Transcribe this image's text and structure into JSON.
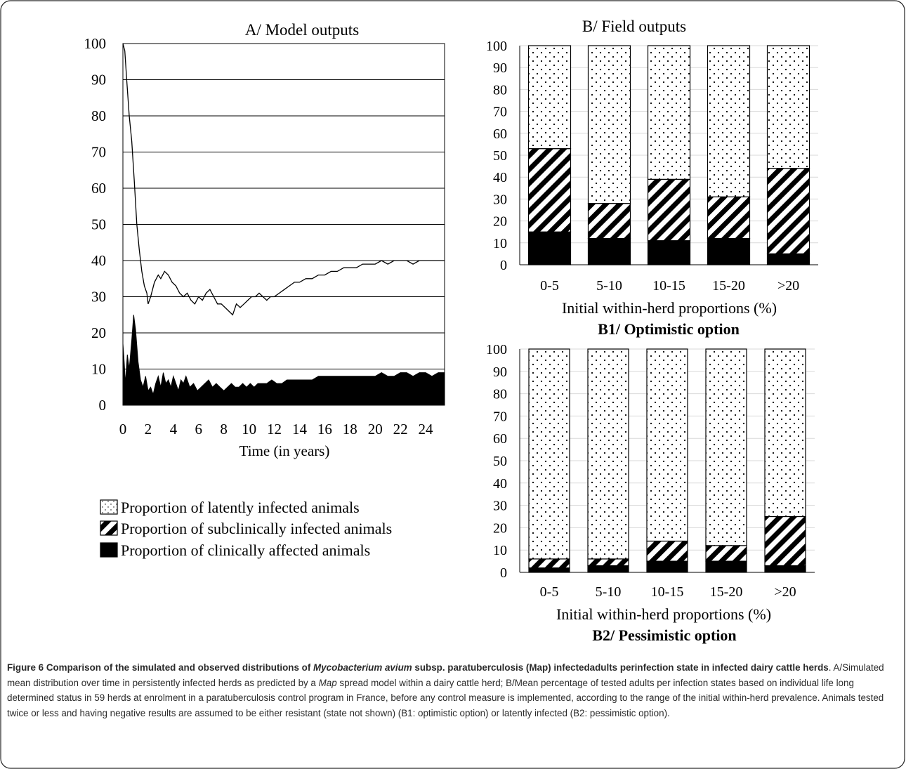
{
  "figure": {
    "caption_label": "Figure 6",
    "caption_title_1": "Comparison of the simulated and observed distributions of",
    "caption_title_italic": "Mycobacterium avium",
    "caption_title_2": "subsp. paratuberculosis (Map) infectedadults perinfection state in infected dairy cattle herds",
    "caption_body_1": ". A/Simulated mean distribution over time in persistently infected herds as predicted by a",
    "caption_body_italic": "Map",
    "caption_body_2": "spread model within a dairy cattle herd; B/Mean percentage of tested adults per infection states based on individual life long determined status in 59 herds at enrolment in a paratuberculosis control program in France, before any control measure is implemented, according to the range of the initial within-herd prevalence. Animals tested twice or less and having negative results are assumed to be either resistant (state not shown) (B1: optimistic option) or latently infected (B2: pessimistic option)."
  },
  "legend": {
    "latent": "Proportion of latently infected animals",
    "subclinical": "Proportion of subclinically infected animals",
    "clinical": "Proportion of clinically affected animals"
  },
  "chart_data": [
    {
      "id": "A",
      "type": "area",
      "title": "A/ Model outputs",
      "xlabel": "Time (in years)",
      "ylabel": "",
      "xlim": [
        0,
        25.5
      ],
      "ylim": [
        0,
        100
      ],
      "xticks": [
        0,
        2,
        4,
        6,
        8,
        10,
        12,
        14,
        16,
        18,
        20,
        22,
        24
      ],
      "yticks": [
        0,
        10,
        20,
        30,
        40,
        50,
        60,
        70,
        80,
        90,
        100
      ],
      "grid": true,
      "series": [
        {
          "name": "Proportion of subclinically infected animals",
          "style": "line",
          "x": [
            0,
            0.15,
            0.3,
            0.5,
            0.7,
            0.9,
            1.1,
            1.3,
            1.5,
            1.7,
            1.9,
            2.0,
            2.2,
            2.5,
            2.8,
            3.0,
            3.3,
            3.6,
            3.9,
            4.2,
            4.5,
            4.8,
            5.1,
            5.4,
            5.7,
            6.0,
            6.3,
            6.6,
            6.9,
            7.2,
            7.5,
            7.8,
            8.1,
            8.4,
            8.7,
            9.0,
            9.3,
            9.6,
            9.9,
            10.2,
            10.5,
            10.8,
            11.1,
            11.4,
            11.7,
            12.0,
            12.4,
            12.8,
            13.2,
            13.6,
            14.0,
            14.5,
            15.0,
            15.5,
            16.0,
            16.5,
            17.0,
            17.5,
            18.0,
            18.5,
            19.0,
            19.5,
            20.0,
            20.5,
            21.0,
            21.5,
            22.0,
            22.5,
            23.0,
            23.5,
            24.0,
            24.5,
            25.0,
            25.5
          ],
          "values": [
            100,
            98,
            90,
            80,
            73,
            62,
            50,
            43,
            37,
            33,
            31,
            28,
            30,
            34,
            36,
            35,
            37,
            36,
            34,
            33,
            31,
            30,
            31,
            29,
            28,
            30,
            29,
            31,
            32,
            30,
            28,
            28,
            27,
            26,
            25,
            28,
            27,
            28,
            29,
            30,
            30,
            31,
            30,
            29,
            30,
            30,
            31,
            32,
            33,
            34,
            34,
            35,
            35,
            36,
            36,
            37,
            37,
            38,
            38,
            38,
            39,
            39,
            39,
            40,
            39,
            40,
            40,
            40,
            39,
            40,
            40,
            40,
            40,
            40
          ]
        },
        {
          "name": "Proportion of clinically affected animals",
          "style": "area",
          "x": [
            0,
            0.1,
            0.2,
            0.35,
            0.5,
            0.7,
            0.85,
            1.0,
            1.2,
            1.4,
            1.6,
            1.8,
            2.0,
            2.2,
            2.4,
            2.6,
            2.8,
            3.0,
            3.2,
            3.4,
            3.6,
            3.8,
            4.0,
            4.2,
            4.4,
            4.6,
            4.8,
            5.0,
            5.3,
            5.6,
            5.9,
            6.2,
            6.5,
            6.8,
            7.1,
            7.4,
            7.7,
            8.0,
            8.3,
            8.6,
            8.9,
            9.2,
            9.5,
            9.8,
            10.1,
            10.4,
            10.7,
            11.0,
            11.4,
            11.8,
            12.2,
            12.6,
            13.0,
            13.5,
            14.0,
            14.5,
            15.0,
            15.5,
            16.0,
            16.5,
            17.0,
            17.5,
            18.0,
            18.5,
            19.0,
            19.5,
            20.0,
            20.5,
            21.0,
            21.5,
            22.0,
            22.5,
            23.0,
            23.5,
            24.0,
            24.5,
            25.0,
            25.5
          ],
          "values": [
            17,
            12,
            6,
            14,
            10,
            18,
            25,
            21,
            12,
            7,
            5,
            8,
            4,
            5,
            3,
            6,
            8,
            5,
            9,
            6,
            7,
            5,
            8,
            6,
            4,
            7,
            6,
            8,
            5,
            6,
            4,
            5,
            6,
            7,
            5,
            6,
            5,
            4,
            5,
            6,
            5,
            5,
            6,
            5,
            6,
            5,
            6,
            6,
            6,
            7,
            6,
            6,
            7,
            7,
            7,
            7,
            7,
            8,
            8,
            8,
            8,
            8,
            8,
            8,
            8,
            8,
            8,
            9,
            8,
            8,
            9,
            9,
            8,
            9,
            9,
            8,
            9,
            9
          ]
        }
      ]
    },
    {
      "id": "B1",
      "type": "bar",
      "stacked": true,
      "title": "B/ Field outputs",
      "subtitle": "B1/ Optimistic option",
      "xlabel": "Initial within-herd proportions (%)",
      "ylabel": "",
      "ylim": [
        0,
        100
      ],
      "yticks": [
        0,
        10,
        20,
        30,
        40,
        50,
        60,
        70,
        80,
        90,
        100
      ],
      "grid": true,
      "categories": [
        "0-5",
        "5-10",
        "10-15",
        "15-20",
        ">20"
      ],
      "series": [
        {
          "name": "Proportion of clinically affected animals",
          "values": [
            15,
            12,
            11,
            12,
            5
          ]
        },
        {
          "name": "Proportion of subclinically infected animals",
          "values": [
            38,
            16,
            28,
            19,
            39
          ]
        },
        {
          "name": "Proportion of latently infected animals",
          "values": [
            47,
            72,
            61,
            69,
            56
          ]
        }
      ]
    },
    {
      "id": "B2",
      "type": "bar",
      "stacked": true,
      "subtitle": "B2/ Pessimistic option",
      "xlabel": "Initial within-herd proportions (%)",
      "ylabel": "",
      "ylim": [
        0,
        100
      ],
      "yticks": [
        0,
        10,
        20,
        30,
        40,
        50,
        60,
        70,
        80,
        90,
        100
      ],
      "grid": true,
      "categories": [
        "0-5",
        "5-10",
        "10-15",
        "15-20",
        ">20"
      ],
      "series": [
        {
          "name": "Proportion of clinically affected animals",
          "values": [
            2,
            3,
            5,
            5,
            3
          ]
        },
        {
          "name": "Proportion of subclinically infected animals",
          "values": [
            4,
            3,
            9,
            7,
            22
          ]
        },
        {
          "name": "Proportion of latently infected animals",
          "values": [
            94,
            94,
            86,
            88,
            75
          ]
        }
      ]
    }
  ]
}
